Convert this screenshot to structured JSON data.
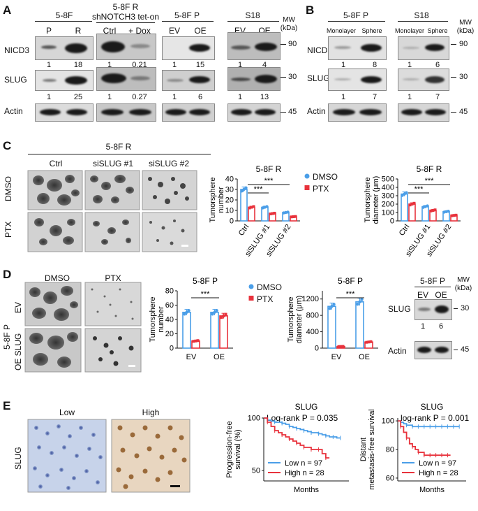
{
  "panelA": {
    "label": "A",
    "groups": [
      {
        "title": "5-8F",
        "lanes": [
          "P",
          "R"
        ]
      },
      {
        "title": "5-8F R\nshNOTCH3 tet-on",
        "lanes": [
          "Ctrl",
          "+ Dox"
        ]
      },
      {
        "title": "5-8F P",
        "lanes": [
          "EV",
          "OE"
        ]
      },
      {
        "title": "S18",
        "lanes": [
          "EV",
          "OE"
        ]
      }
    ],
    "rows": [
      "NICD3",
      "SLUG",
      "Actin"
    ],
    "nicd3_values": [
      [
        "1",
        "18"
      ],
      [
        "1",
        "0.21"
      ],
      [
        "1",
        "15"
      ],
      [
        "1",
        "4"
      ]
    ],
    "slug_values": [
      [
        "1",
        "25"
      ],
      [
        "1",
        "0.27"
      ],
      [
        "1",
        "6"
      ],
      [
        "1",
        "13"
      ]
    ],
    "mw_title": "MW\n(kDa)",
    "mw": [
      "90",
      "30",
      "45"
    ]
  },
  "panelB": {
    "label": "B",
    "groups": [
      {
        "title": "5-8F P",
        "lanes": [
          "Monolayer",
          "Sphere"
        ]
      },
      {
        "title": "S18",
        "lanes": [
          "Monolayer",
          "Sphere"
        ]
      }
    ],
    "rows": [
      "NICD3",
      "SLUG",
      "Actin"
    ],
    "nicd3_values": [
      [
        "1",
        "8"
      ],
      [
        "1",
        "6"
      ]
    ],
    "slug_values": [
      [
        "1",
        "7"
      ],
      [
        "1",
        "7"
      ]
    ],
    "mw_title": "MW\n(kDa)",
    "mw": [
      "90",
      "30",
      "45"
    ]
  },
  "panelC": {
    "label": "C",
    "header": "5-8F R",
    "columns": [
      "Ctrl",
      "siSLUG #1",
      "siSLUG #2"
    ],
    "rows": [
      "DMSO",
      "PTX"
    ],
    "legend": [
      "DMSO",
      "PTX"
    ]
  },
  "panelD": {
    "label": "D",
    "side_label": "5-8F P",
    "columns": [
      "DMSO",
      "PTX"
    ],
    "rows": [
      "EV",
      "OE SLUG"
    ],
    "legend": [
      "DMSO",
      "PTX"
    ],
    "blot": {
      "title": "5-8F P",
      "lanes": [
        "EV",
        "OE"
      ],
      "rows": [
        "SLUG",
        "Actin"
      ],
      "values": [
        "1",
        "6"
      ],
      "mw_title": "MW\n(kDa)",
      "mw": [
        "30",
        "45"
      ]
    }
  },
  "panelE": {
    "label": "E",
    "row_label": "SLUG",
    "columns": [
      "Low",
      "High"
    ]
  },
  "colors": {
    "dmso": "#4a9ee8",
    "ptx": "#e8323c",
    "low": "#4a9ee8",
    "high": "#e8323c"
  },
  "chart_data": [
    {
      "type": "bar",
      "title": "5-8F R",
      "ylabel": "Tumorsphere number",
      "categories": [
        "Ctrl",
        "siSLUG #1",
        "siSLUG #2"
      ],
      "ylim": [
        0,
        40
      ],
      "yticks": [
        0,
        10,
        20,
        30,
        40
      ],
      "series": [
        {
          "name": "DMSO",
          "values": [
            30,
            13,
            8
          ]
        },
        {
          "name": "PTX",
          "values": [
            13,
            7,
            4
          ]
        }
      ],
      "annotations": [
        "***",
        "***"
      ]
    },
    {
      "type": "bar",
      "title": "5-8F R",
      "ylabel": "Tumorsphere diameter (μm)",
      "categories": [
        "Ctrl",
        "siSLUG #1",
        "siSLUG #2"
      ],
      "ylim": [
        0,
        500
      ],
      "yticks": [
        0,
        100,
        200,
        300,
        400,
        500
      ],
      "series": [
        {
          "name": "DMSO",
          "values": [
            320,
            170,
            110
          ]
        },
        {
          "name": "PTX",
          "values": [
            200,
            125,
            65
          ]
        }
      ],
      "annotations": [
        "***",
        "***"
      ]
    },
    {
      "type": "bar",
      "title": "5-8F P",
      "ylabel": "Tumorsphere number",
      "categories": [
        "EV",
        "OE"
      ],
      "ylim": [
        0,
        80
      ],
      "yticks": [
        0,
        20,
        40,
        60,
        80
      ],
      "series": [
        {
          "name": "DMSO",
          "values": [
            50,
            50
          ]
        },
        {
          "name": "PTX",
          "values": [
            10,
            45
          ]
        }
      ],
      "annotations": [
        "***"
      ]
    },
    {
      "type": "bar",
      "title": "5-8F P",
      "ylabel": "Tumorsphere diameter (μm)",
      "categories": [
        "EV",
        "OE"
      ],
      "ylim": [
        0,
        1400
      ],
      "yticks": [
        0,
        400,
        800,
        1200
      ],
      "series": [
        {
          "name": "DMSO",
          "values": [
            1020,
            1130
          ]
        },
        {
          "name": "PTX",
          "values": [
            40,
            150
          ]
        }
      ],
      "annotations": [
        "***"
      ]
    },
    {
      "type": "line",
      "title": "SLUG",
      "xlabel": "Months",
      "ylabel": "Progression-free survival (%)",
      "annotation": "Log-rank P = 0.035",
      "xlim": [
        0,
        70
      ],
      "ylim": [
        40,
        100
      ],
      "yticks": [
        50,
        100
      ],
      "series": [
        {
          "name": "Low n = 97",
          "x": [
            0,
            3,
            6,
            9,
            12,
            15,
            18,
            21,
            24,
            27,
            30,
            33,
            36,
            39,
            42,
            45,
            48,
            51,
            54,
            57,
            60,
            63
          ],
          "y": [
            100,
            98,
            97,
            96,
            96,
            95,
            94,
            92,
            91,
            90,
            89,
            88,
            87,
            86,
            86,
            85,
            84,
            83,
            82,
            82,
            81,
            81
          ]
        },
        {
          "name": "High n = 28",
          "x": [
            0,
            3,
            6,
            9,
            12,
            15,
            18,
            21,
            24,
            27,
            30,
            33,
            36,
            39,
            42,
            45,
            48,
            51,
            54
          ],
          "y": [
            100,
            96,
            92,
            88,
            86,
            84,
            82,
            80,
            78,
            76,
            74,
            72,
            72,
            70,
            70,
            70,
            66,
            62,
            62
          ]
        }
      ]
    },
    {
      "type": "line",
      "title": "SLUG",
      "xlabel": "Months",
      "ylabel": "Distant metastasis-free survival",
      "annotation": "log-rank P = 0.001",
      "xlim": [
        0,
        70
      ],
      "ylim": [
        58,
        102
      ],
      "yticks": [
        60,
        80,
        100
      ],
      "series": [
        {
          "name": "Low n = 97",
          "x": [
            0,
            3,
            6,
            9,
            12,
            15,
            18,
            21,
            24,
            27,
            30,
            33,
            36,
            39,
            42,
            45,
            48,
            51,
            54,
            57,
            60,
            63
          ],
          "y": [
            100,
            99,
            98,
            97,
            97,
            96,
            96,
            96,
            96,
            96,
            96,
            96,
            96,
            96,
            96,
            96,
            96,
            96,
            96,
            96,
            96,
            96
          ]
        },
        {
          "name": "High n = 28",
          "x": [
            0,
            3,
            6,
            9,
            12,
            15,
            18,
            21,
            24,
            27,
            30,
            33,
            36,
            39,
            42,
            45,
            48,
            51,
            54
          ],
          "y": [
            100,
            96,
            92,
            88,
            84,
            82,
            80,
            78,
            78,
            76,
            76,
            76,
            76,
            76,
            76,
            76,
            76,
            76,
            76
          ]
        }
      ]
    }
  ]
}
